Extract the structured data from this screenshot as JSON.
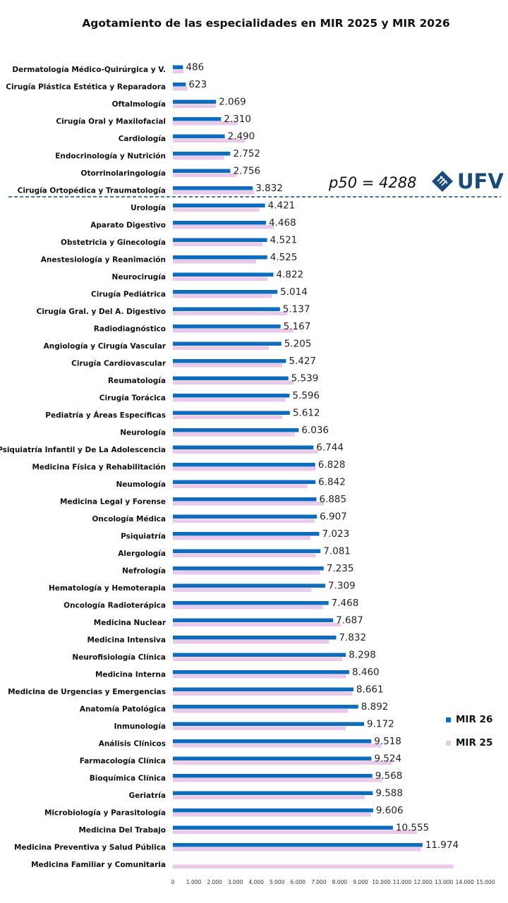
{
  "chart_data": {
    "type": "bar",
    "orientation": "horizontal",
    "title": "Agotamiento de las especialidades en MIR 2025 y MIR 2026",
    "categories": [
      "Dermatología Médico-Quirúrgica y V.",
      "Cirugía Plástica Estética y Reparadora",
      "Oftalmología",
      "Cirugía Oral y Maxilofacial",
      "Cardiología",
      "Endocrinología y Nutrición",
      "Otorrinolaringología",
      "Cirugía Ortopédica y Traumatología",
      "Urología",
      "Aparato Digestivo",
      "Obstetricia y Ginecología",
      "Anestesiología y Reanimación",
      "Neurocirugía",
      "Cirugía Pediátrica",
      "Cirugía Gral. y Del A. Digestivo",
      "Radiodiagnóstico",
      "Angiología y Cirugía Vascular",
      "Cirugía Cardiovascular",
      "Reumatología",
      "Cirugía Torácica",
      "Pediatría y Áreas Específicas",
      "Neurología",
      "Psiquiatría Infantil y De La Adolescencia",
      "Medicina Física y Rehabilitación",
      "Neumología",
      "Medicina Legal y Forense",
      "Oncología Médica",
      "Psiquiatría",
      "Alergología",
      "Nefrología",
      "Hematología y Hemoterapia",
      "Oncología Radioterápica",
      "Medicina Nuclear",
      "Medicina Intensiva",
      "Neurofisiología Clínica",
      "Medicina Interna",
      "Medicina de Urgencias y Emergencias",
      "Anatomía Patológica",
      "Inmunología",
      "Análisis Clínicos",
      "Farmacología Clínica",
      "Bioquímica Clínica",
      "Geriatría",
      "Microbiología y Parasitología",
      "Medicina Del Trabajo",
      "Medicina Preventiva y Salud Pública",
      "Medicina Familiar y Comunitaria"
    ],
    "series": [
      {
        "name": "MIR 26",
        "color": "#0f6cbd",
        "values": [
          486,
          623,
          2069,
          2310,
          2490,
          2752,
          2756,
          3832,
          4421,
          4468,
          4521,
          4525,
          4822,
          5014,
          5137,
          5167,
          5205,
          5427,
          5539,
          5596,
          5612,
          6036,
          6744,
          6828,
          6842,
          6885,
          6907,
          7023,
          7081,
          7235,
          7309,
          7468,
          7687,
          7832,
          8298,
          8460,
          8661,
          8892,
          9172,
          9518,
          9524,
          9568,
          9588,
          9606,
          10555,
          11974,
          null
        ],
        "labels": [
          "486",
          "623",
          "2.069",
          "2.310",
          "2.490",
          "2.752",
          "2.756",
          "3.832",
          "4.421",
          "4.468",
          "4.521",
          "4.525",
          "4.822",
          "5.014",
          "5.137",
          "5.167",
          "5.205",
          "5.427",
          "5.539",
          "5.596",
          "5.612",
          "6.036",
          "6.744",
          "6.828",
          "6.842",
          "6.885",
          "6.907",
          "7.023",
          "7.081",
          "7.235",
          "7.309",
          "7.468",
          "7.687",
          "7.832",
          "8.298",
          "8.460",
          "8.661",
          "8.892",
          "9.172",
          "9.518",
          "9.524",
          "9.568",
          "9.588",
          "9.606",
          "10.555",
          "11.974",
          ""
        ]
      },
      {
        "name": "MIR 25",
        "color": "#ebc9ea",
        "values": [
          500,
          700,
          2050,
          3100,
          3450,
          2450,
          3050,
          3900,
          4150,
          4850,
          4300,
          3990,
          4550,
          4750,
          5500,
          5800,
          4600,
          5250,
          5800,
          5400,
          5250,
          5850,
          6950,
          6850,
          6450,
          7250,
          6800,
          6600,
          6850,
          7050,
          6650,
          7200,
          8050,
          7500,
          8150,
          8300,
          8600,
          8400,
          8300,
          10000,
          10500,
          10050,
          9200,
          9500,
          11700,
          11900,
          13450
        ]
      }
    ],
    "xlim": [
      0,
      15000
    ],
    "xticks": [
      0,
      1000,
      2000,
      3000,
      4000,
      5000,
      6000,
      7000,
      8000,
      9000,
      10000,
      11000,
      12000,
      13000,
      14000,
      15000
    ],
    "xtick_labels": [
      "0",
      "1.000",
      "2.000",
      "3.000",
      "4.000",
      "5.000",
      "6.000",
      "7.000",
      "8.000",
      "9.000",
      "10.000",
      "11.000",
      "12.000",
      "13.000",
      "14.000",
      "15.000"
    ],
    "grid": false,
    "legend_position": "right",
    "annotation": {
      "text": "p50 = 4288",
      "line_after_category": "Cirugía Ortopédica y Traumatología",
      "line_style": "dashed",
      "line_color": "#1a4a7a"
    }
  },
  "logo": {
    "text": "UFV",
    "icon": "ufv-diamond-logo-icon",
    "color": "#1a4a7a"
  }
}
